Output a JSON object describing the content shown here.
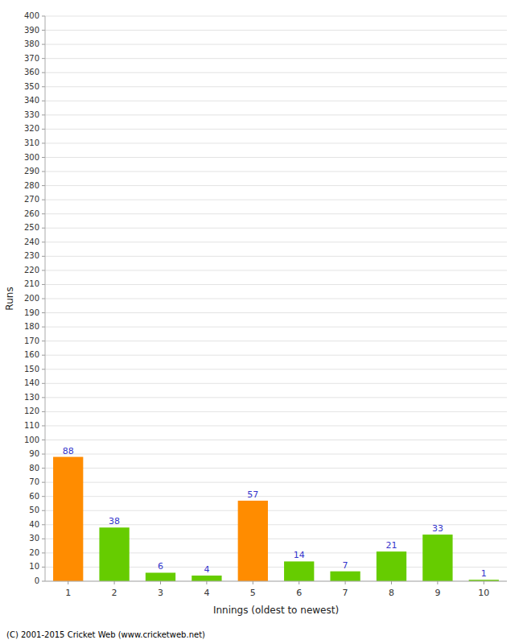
{
  "chart_data": {
    "type": "bar",
    "categories": [
      "1",
      "2",
      "3",
      "4",
      "5",
      "6",
      "7",
      "8",
      "9",
      "10"
    ],
    "values": [
      88,
      38,
      6,
      4,
      57,
      14,
      7,
      21,
      33,
      1
    ],
    "colors": [
      "#ff8c00",
      "#66cc00",
      "#66cc00",
      "#66cc00",
      "#ff8c00",
      "#66cc00",
      "#66cc00",
      "#66cc00",
      "#66cc00",
      "#66cc00"
    ],
    "xlabel": "Innings (oldest to newest)",
    "ylabel": "Runs",
    "ylim": [
      0,
      400
    ],
    "yticks": [
      0,
      10,
      20,
      30,
      40,
      50,
      60,
      70,
      80,
      90,
      100,
      110,
      120,
      130,
      140,
      150,
      160,
      170,
      180,
      190,
      200,
      210,
      220,
      230,
      240,
      250,
      260,
      270,
      280,
      290,
      300,
      310,
      320,
      330,
      340,
      350,
      360,
      370,
      380,
      390,
      400
    ],
    "grid": true,
    "data_labels": true,
    "annotations": [
      "(C) 2001-2015 Cricket Web (www.cricketweb.net)"
    ]
  }
}
